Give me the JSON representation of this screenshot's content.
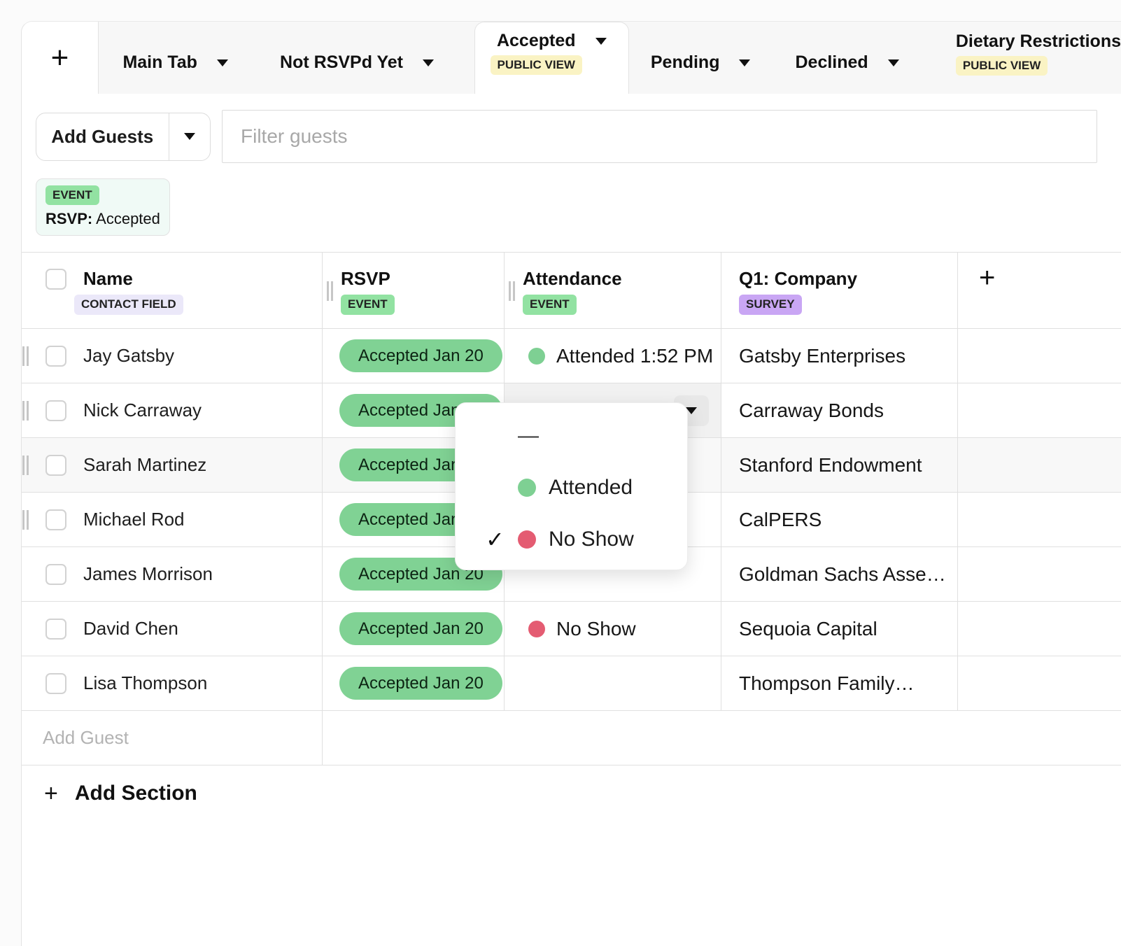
{
  "icons": {
    "plus": "+",
    "check": "✓",
    "dash": "—"
  },
  "colors": {
    "pill_green": "#80d294",
    "dot_green": "#7ed093",
    "dot_red": "#e45c72",
    "badge_event": "#92e2a2",
    "badge_survey": "#c9a6f4",
    "badge_contact_field": "#ebe8f9",
    "badge_public_view": "#faf3c4"
  },
  "tab_bar": {
    "tabs": [
      {
        "label": "Main Tab"
      },
      {
        "label": "Not RSVPd Yet"
      },
      {
        "label": "Accepted",
        "badge": "PUBLIC VIEW",
        "active": true
      },
      {
        "label": "Pending"
      },
      {
        "label": "Declined"
      },
      {
        "label": "Dietary Restrictions",
        "badge": "PUBLIC VIEW"
      }
    ]
  },
  "toolbar": {
    "add_guests_label": "Add Guests",
    "filter_placeholder": "Filter guests"
  },
  "filter_chip": {
    "tag": "EVENT",
    "field": "RSVP:",
    "value": "Accepted"
  },
  "table": {
    "columns": [
      {
        "title": "Name",
        "badge": "CONTACT FIELD"
      },
      {
        "title": "RSVP",
        "badge": "EVENT"
      },
      {
        "title": "Attendance",
        "badge": "EVENT"
      },
      {
        "title": "Q1: Company",
        "badge": "SURVEY"
      },
      {
        "title": "+"
      }
    ],
    "rows": [
      {
        "name": "Jay Gatsby",
        "rsvp": "Accepted Jan 20",
        "attendance": {
          "status": "Attended 1:52 PM",
          "dot": "green"
        },
        "company": "Gatsby Enterprises"
      },
      {
        "name": "Nick Carraway",
        "rsvp": "Accepted Jan 20",
        "attendance": {
          "status": "No Show",
          "dot": "red",
          "editing": true
        },
        "company": "Carraway Bonds"
      },
      {
        "name": "Sarah Martinez",
        "rsvp": "Accepted Jan 20",
        "company": "Stanford Endowment"
      },
      {
        "name": "Michael Rod",
        "rsvp": "Accepted Jan 20",
        "company": "CalPERS"
      },
      {
        "name": "James Morrison",
        "rsvp": "Accepted Jan 20",
        "company": "Goldman Sachs Asse…"
      },
      {
        "name": "David Chen",
        "rsvp": "Accepted Jan 20",
        "attendance": {
          "status": "No Show",
          "dot": "red"
        },
        "company": "Sequoia Capital"
      },
      {
        "name": "Lisa Thompson",
        "rsvp": "Accepted Jan 20",
        "company": "Thompson Family…"
      }
    ],
    "add_guest_placeholder": "Add Guest",
    "add_section_label": "Add Section"
  },
  "attendance_menu": {
    "items": [
      {
        "label": "—",
        "type": "clear"
      },
      {
        "label": "Attended",
        "dot": "green",
        "selected": false
      },
      {
        "label": "No Show",
        "dot": "red",
        "selected": true
      }
    ]
  }
}
